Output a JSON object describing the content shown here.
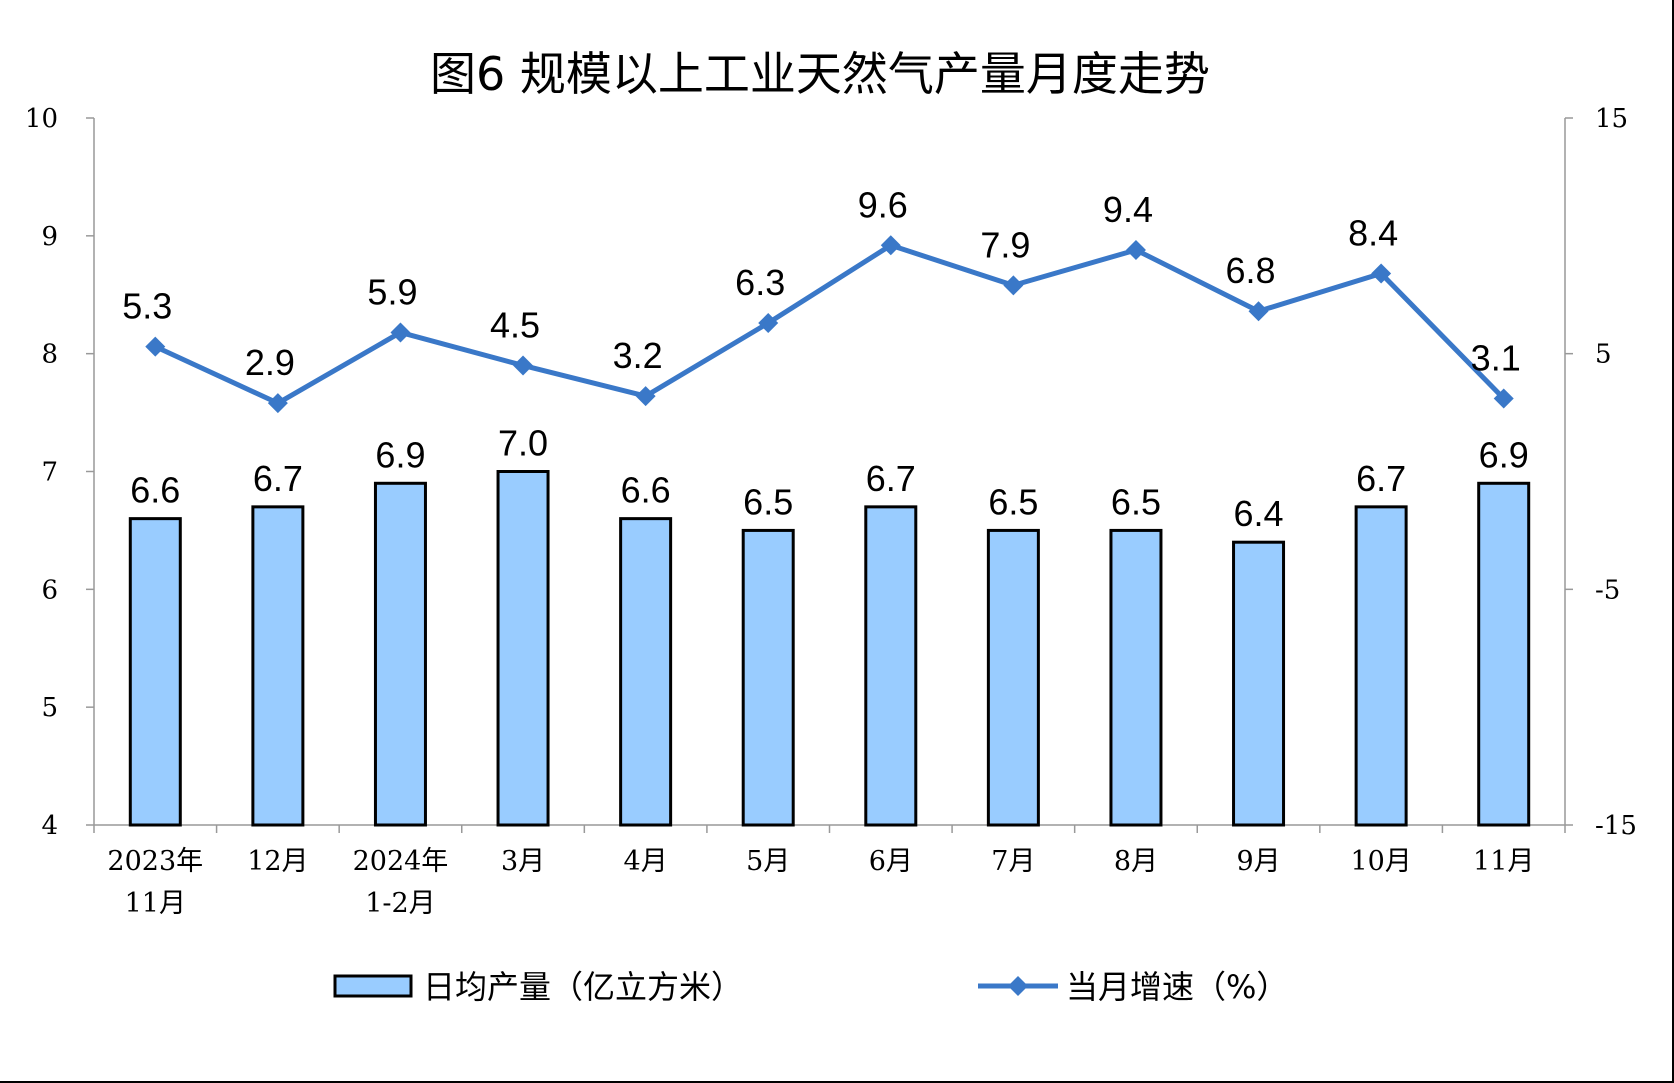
{
  "chart_data": {
    "type": "bar",
    "title": "图6  规模以上工业天然气产量月度走势",
    "categories": [
      [
        "2023年",
        "11月"
      ],
      [
        "12月"
      ],
      [
        "2024年",
        "1-2月"
      ],
      [
        "3月"
      ],
      [
        "4月"
      ],
      [
        "5月"
      ],
      [
        "6月"
      ],
      [
        "7月"
      ],
      [
        "8月"
      ],
      [
        "9月"
      ],
      [
        "10月"
      ],
      [
        "11月"
      ]
    ],
    "series": [
      {
        "name": "日均产量（亿立方米）",
        "type": "bar",
        "axis": "left",
        "color": "#99CCFF",
        "values": [
          6.6,
          6.7,
          6.9,
          7.0,
          6.6,
          6.5,
          6.7,
          6.5,
          6.5,
          6.4,
          6.7,
          6.9
        ],
        "labels": [
          "6.6",
          "6.7",
          "6.9",
          "7.0",
          "6.6",
          "6.5",
          "6.7",
          "6.5",
          "6.5",
          "6.4",
          "6.7",
          "6.9"
        ]
      },
      {
        "name": "当月增速（%）",
        "type": "line",
        "axis": "right",
        "color": "#3A78C8",
        "marker": "diamond",
        "values": [
          5.3,
          2.9,
          5.9,
          4.5,
          3.2,
          6.3,
          9.6,
          7.9,
          9.4,
          6.8,
          8.4,
          3.1
        ],
        "labels": [
          "5.3",
          "2.9",
          "5.9",
          "4.5",
          "3.2",
          "6.3",
          "9.6",
          "7.9",
          "9.4",
          "6.8",
          "8.4",
          "3.1"
        ]
      }
    ],
    "y_left": {
      "min": 4,
      "max": 10,
      "ticks": [
        "4",
        "5",
        "6",
        "7",
        "8",
        "9",
        "10"
      ]
    },
    "y_right": {
      "min": -15,
      "max": 15,
      "ticks": [
        "-15",
        "-5",
        "5",
        "15"
      ]
    },
    "legend_position": "bottom",
    "grid": false
  }
}
